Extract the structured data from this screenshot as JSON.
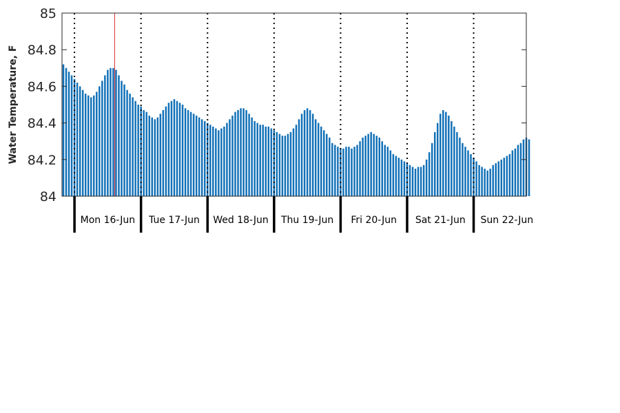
{
  "chart_data": {
    "type": "bar",
    "ylabel": "Water Temperature, F",
    "ylim": [
      84,
      85
    ],
    "yticks": [
      "84",
      "84.2",
      "84.4",
      "84.6",
      "84.8",
      "85"
    ],
    "xlim": [
      "2025-06-15T19:30",
      "2025-06-22T19:00"
    ],
    "day_labels": [
      "Mon 16-Jun",
      "Tue 17-Jun",
      "Wed 18-Jun",
      "Thu 19-Jun",
      "Fri 20-Jun",
      "Sat 21-Jun",
      "Sun 22-Jun"
    ],
    "day_boundaries": [
      "2025-06-16T00:00",
      "2025-06-17T00:00",
      "2025-06-18T00:00",
      "2025-06-19T00:00",
      "2025-06-20T00:00",
      "2025-06-21T00:00",
      "2025-06-22T00:00"
    ],
    "marker_time": "2025-06-16T14:30",
    "interval_hours": 1,
    "series": [
      {
        "start": "2025-06-15T19:30",
        "values": [
          84.72,
          84.7,
          84.68,
          84.66,
          84.64,
          84.62,
          84.6,
          84.58,
          84.56,
          84.55,
          84.54,
          84.55,
          84.57,
          84.6,
          84.63,
          84.66,
          84.69,
          84.7,
          84.7,
          84.69,
          84.66,
          84.63,
          84.61,
          84.58,
          84.56,
          84.54,
          84.52,
          84.5,
          84.49,
          84.47,
          84.46,
          84.44,
          84.43,
          84.42,
          84.43,
          84.45,
          84.47,
          84.49,
          84.51,
          84.52,
          84.53,
          84.52,
          84.51,
          84.5,
          84.48,
          84.47,
          84.46,
          84.45,
          84.44,
          84.43,
          84.42,
          84.41,
          84.4,
          84.39,
          84.38,
          84.37,
          84.36,
          84.37,
          84.38,
          84.4,
          84.42,
          84.44,
          84.46,
          84.47,
          84.48,
          84.48,
          84.47,
          84.45,
          84.43,
          84.41,
          84.4,
          84.39,
          84.39,
          84.38,
          84.38,
          84.37,
          84.36,
          84.35,
          84.34,
          84.33,
          84.33,
          84.34,
          84.35,
          84.37,
          84.39,
          84.42,
          84.45,
          84.47,
          84.48,
          84.47,
          84.45,
          84.42,
          84.4,
          84.38,
          84.36,
          84.34,
          84.32,
          84.29,
          84.28,
          84.27,
          84.26,
          84.26,
          84.27,
          84.27,
          84.26,
          84.27,
          84.28,
          84.3,
          84.32,
          84.33,
          84.34,
          84.35,
          84.34,
          84.33,
          84.32,
          84.3,
          84.28,
          84.27,
          84.25,
          84.23,
          84.22,
          84.21,
          84.2,
          84.19,
          84.18,
          84.17,
          84.16,
          84.15,
          84.16,
          84.16,
          84.17,
          84.2,
          84.24,
          84.29,
          84.35,
          84.4,
          84.45,
          84.47,
          84.46,
          84.44,
          84.41,
          84.38,
          84.35,
          84.32,
          84.29,
          84.27,
          84.25,
          84.23,
          84.21,
          84.19,
          84.17,
          84.16,
          84.15,
          84.14,
          84.15,
          84.17,
          84.18,
          84.19,
          84.2,
          84.21,
          84.22,
          84.23,
          84.25,
          84.26,
          84.28,
          84.29,
          84.31,
          84.32,
          84.31
        ]
      }
    ],
    "colors": {
      "bar": "#1170b7",
      "marker": "#e2302e",
      "axis": "#262626"
    },
    "grid": false
  }
}
